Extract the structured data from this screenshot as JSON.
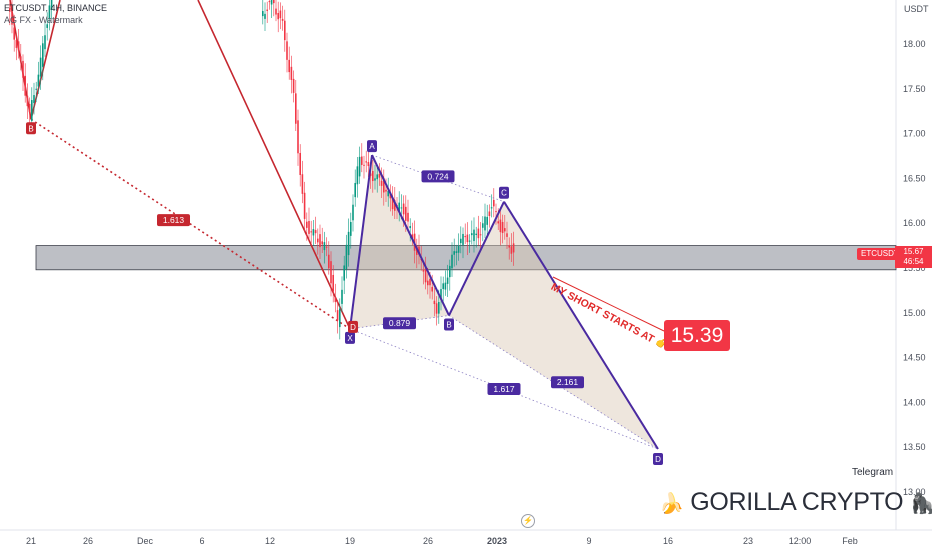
{
  "header": {
    "title": "ETCUSDT, 4H, BINANCE",
    "subtitle": "AG FX - Watermark"
  },
  "axis": {
    "currency": "USDT"
  },
  "current": {
    "symbol": "ETCUSDT",
    "price": "15.67",
    "countdown": "46:54"
  },
  "annotations": {
    "short_note": "MY SHORT STARTS AT",
    "short_note_icon": "pointing-hand-icon",
    "target_price": "15.39",
    "telegram": "Telegram",
    "brand": "GORILLA CRYPTO",
    "brand_icons": [
      "banana-icon",
      "gorilla-icon"
    ]
  },
  "chart_data": {
    "type": "line",
    "x_tick_labels": [
      "21",
      "26",
      "Dec",
      "6",
      "12",
      "19",
      "26",
      "2023",
      "9",
      "16",
      "23",
      "12:00",
      "Feb"
    ],
    "y_tick_labels": [
      "18.00",
      "17.50",
      "17.00",
      "16.50",
      "16.00",
      "15.50",
      "15.00",
      "14.50",
      "14.00",
      "13.50",
      "13.00"
    ],
    "ylim": [
      12.45,
      18.55
    ],
    "grid": false,
    "colors": {
      "candle_up": "#089981",
      "candle_down": "#f23645",
      "pattern": "#4a2aa0",
      "prior_move": "#c5272f",
      "zone": "#9a9da6"
    },
    "price_series": [
      {
        "t": "Nov 19",
        "p": 18.4
      },
      {
        "t": "Nov 20",
        "p": 17.9
      },
      {
        "t": "Nov 21",
        "p": 17.2
      },
      {
        "t": "Nov 22",
        "p": 17.8
      },
      {
        "t": "Nov 23",
        "p": 18.6
      },
      {
        "t": "Dec 12",
        "p": 18.3
      },
      {
        "t": "Dec 13",
        "p": 18.5
      },
      {
        "t": "Dec 14",
        "p": 18.2
      },
      {
        "t": "Dec 15",
        "p": 17.4
      },
      {
        "t": "Dec 16",
        "p": 16.0
      },
      {
        "t": "Dec 17",
        "p": 15.85
      },
      {
        "t": "Dec 18",
        "p": 15.7
      },
      {
        "t": "Dec 19",
        "p": 14.9
      },
      {
        "t": "Dec 20",
        "p": 15.9
      },
      {
        "t": "Dec 21",
        "p": 16.75
      },
      {
        "t": "Dec 22",
        "p": 16.55
      },
      {
        "t": "Dec 23",
        "p": 16.45
      },
      {
        "t": "Dec 24",
        "p": 16.2
      },
      {
        "t": "Dec 25",
        "p": 16.15
      },
      {
        "t": "Dec 26",
        "p": 15.75
      },
      {
        "t": "Dec 27",
        "p": 15.4
      },
      {
        "t": "Dec 28",
        "p": 15.05
      },
      {
        "t": "Dec 29",
        "p": 15.45
      },
      {
        "t": "Dec 30",
        "p": 15.8
      },
      {
        "t": "Dec 31",
        "p": 15.85
      },
      {
        "t": "Jan 1",
        "p": 15.9
      },
      {
        "t": "Jan 2",
        "p": 16.2
      },
      {
        "t": "Jan 3",
        "p": 15.9
      },
      {
        "t": "Jan 4",
        "p": 15.67
      }
    ],
    "pattern_points": [
      {
        "label": "X",
        "t": "Dec 20",
        "p": 14.82
      },
      {
        "label": "A",
        "t": "Dec 22",
        "p": 16.76
      },
      {
        "label": "B",
        "t": "Dec 29",
        "p": 14.97
      },
      {
        "label": "C",
        "t": "Jan 3",
        "p": 16.24
      },
      {
        "label": "D",
        "t": "Jan 17",
        "p": 13.48
      }
    ],
    "prior_leg": [
      {
        "label": "B",
        "t": "Nov 21",
        "p": 17.16
      },
      {
        "label": "D",
        "t": "Dec 20",
        "p": 14.82
      }
    ],
    "ratios": [
      "0.724",
      "0.879",
      "1.617",
      "2.161",
      "1.613"
    ],
    "zone": {
      "upper": 15.75,
      "lower": 15.48
    }
  }
}
